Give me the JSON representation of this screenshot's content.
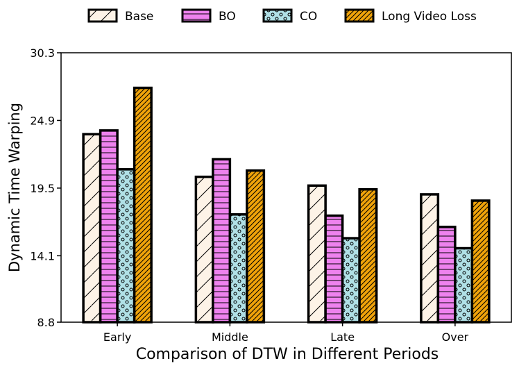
{
  "chart_data": {
    "type": "bar",
    "title": "",
    "xlabel": "Comparison of DTW in Different Periods",
    "ylabel": "Dynamic Time Warping",
    "ylim": [
      8.8,
      30.3
    ],
    "yticks": [
      "8.8",
      "14.1",
      "19.5",
      "24.9",
      "30.3"
    ],
    "categories": [
      "Early",
      "Middle",
      "Late",
      "Over"
    ],
    "legend_position": "top",
    "series": [
      {
        "name": "Base",
        "color": "#fdf3e7",
        "pattern": "diagonal",
        "values": [
          23.8,
          20.4,
          19.7,
          19.0
        ]
      },
      {
        "name": "BO",
        "color": "#ee82ee",
        "pattern": "horizontal",
        "values": [
          24.1,
          21.8,
          17.3,
          16.4
        ]
      },
      {
        "name": "CO",
        "color": "#b0e0e6",
        "pattern": "circles",
        "values": [
          21.0,
          17.4,
          15.5,
          14.7
        ]
      },
      {
        "name": "Long Video Loss",
        "color": "#f0a30a",
        "pattern": "dense-diagonal",
        "values": [
          27.5,
          20.9,
          19.4,
          18.5
        ]
      }
    ]
  }
}
